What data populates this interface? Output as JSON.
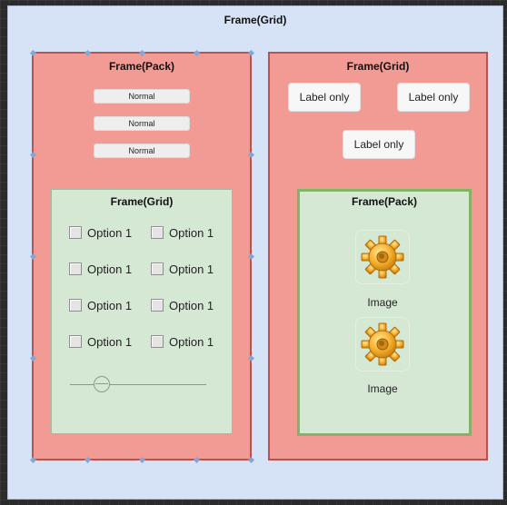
{
  "outer_frame": {
    "title": "Frame(Grid)"
  },
  "left_frame": {
    "title": "Frame(Pack)",
    "buttons": [
      "Normal",
      "Normal",
      "Normal"
    ],
    "inner_frame": {
      "title": "Frame(Grid)",
      "options": [
        "Option 1",
        "Option 1",
        "Option 1",
        "Option 1",
        "Option 1",
        "Option 1",
        "Option 1",
        "Option 1"
      ],
      "slider_value": 0.2
    }
  },
  "right_frame": {
    "title": "Frame(Grid)",
    "labels": [
      "Label only",
      "Label only",
      "Label only"
    ],
    "inner_frame": {
      "title": "Frame(Pack)",
      "images": [
        {
          "icon": "gear-icon",
          "caption": "Image"
        },
        {
          "icon": "gear-icon",
          "caption": "Image"
        }
      ]
    }
  },
  "colors": {
    "outer_fill": "#d6e3f6",
    "pack_fill": "#f29b95",
    "pack_border": "#b85450",
    "grid_fill": "#d5e8d4",
    "grid_border": "#82b366"
  }
}
